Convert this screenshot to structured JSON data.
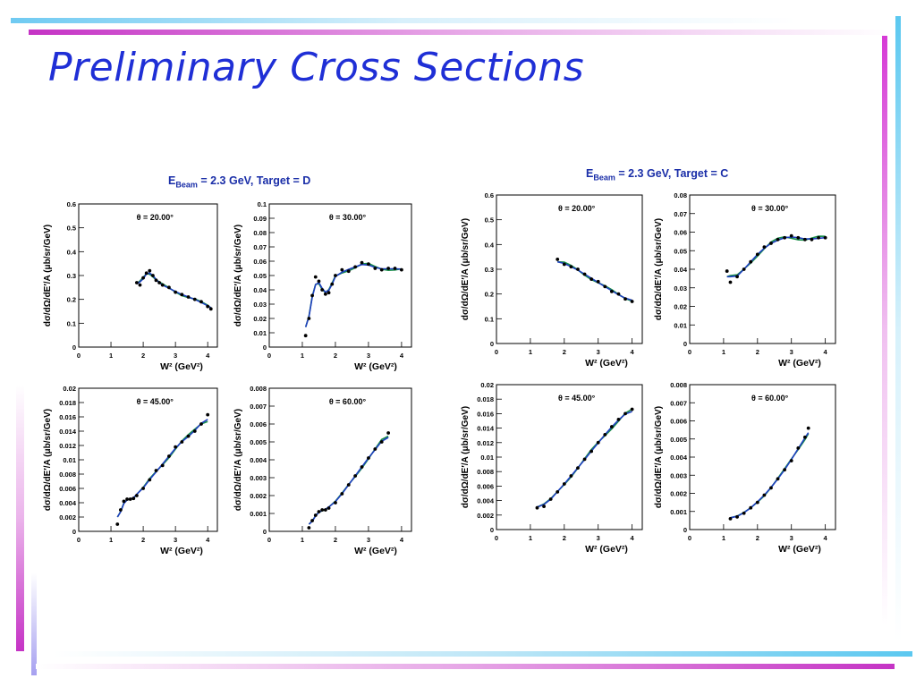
{
  "slide": {
    "title": "Preliminary Cross Sections",
    "colors": {
      "title": "#1f2fd6",
      "magenta": "#cc33cc",
      "cyan": "#5bc8f0",
      "group_title": "#1a2ea8"
    }
  },
  "groups": [
    {
      "prefix": "E",
      "sub": "Beam",
      "rest": "= 2.3 GeV, Target = D"
    },
    {
      "prefix": "E",
      "sub": "Beam",
      "rest": "= 2.3 GeV, Target = C"
    }
  ],
  "common": {
    "ylabel": "dσ/dΩ/dE′/A (μb/sr/GeV)",
    "xlabel": "W² (GeV²)",
    "series": [
      {
        "role": "data",
        "color": "#000000"
      },
      {
        "role": "model-1",
        "color": "#1e3fbf"
      },
      {
        "role": "model-2",
        "color": "#1a8f4a"
      }
    ]
  },
  "chart_data": [
    {
      "type": "scatter",
      "group": "Target = D",
      "annotation": "θ = 20.00°",
      "xlim": [
        0,
        4.3
      ],
      "ylim": [
        0,
        0.6
      ],
      "xticks": [
        "0",
        "1",
        "2",
        "3",
        "4"
      ],
      "yticks": [
        "0",
        "0.1",
        "0.2",
        "0.3",
        "0.4",
        "0.5",
        "0.6"
      ],
      "x": [
        1.8,
        1.9,
        2.0,
        2.1,
        2.2,
        2.3,
        2.4,
        2.5,
        2.6,
        2.8,
        3.0,
        3.2,
        3.4,
        3.6,
        3.8,
        4.0,
        4.1
      ],
      "y": [
        0.27,
        0.26,
        0.29,
        0.31,
        0.32,
        0.3,
        0.28,
        0.27,
        0.26,
        0.25,
        0.23,
        0.22,
        0.21,
        0.2,
        0.19,
        0.17,
        0.16
      ]
    },
    {
      "type": "scatter",
      "group": "Target = D",
      "annotation": "θ = 30.00°",
      "xlim": [
        0,
        4.3
      ],
      "ylim": [
        0,
        0.1
      ],
      "xticks": [
        "0",
        "1",
        "2",
        "3",
        "4"
      ],
      "yticks": [
        "0",
        "0.01",
        "0.02",
        "0.03",
        "0.04",
        "0.05",
        "0.06",
        "0.07",
        "0.08",
        "0.09",
        "0.1"
      ],
      "x": [
        1.1,
        1.2,
        1.3,
        1.4,
        1.5,
        1.6,
        1.7,
        1.8,
        1.9,
        2.0,
        2.2,
        2.4,
        2.6,
        2.8,
        3.0,
        3.2,
        3.4,
        3.6,
        3.8,
        4.0
      ],
      "y": [
        0.008,
        0.02,
        0.036,
        0.049,
        0.046,
        0.04,
        0.037,
        0.038,
        0.044,
        0.05,
        0.054,
        0.053,
        0.056,
        0.059,
        0.058,
        0.055,
        0.054,
        0.055,
        0.055,
        0.054
      ]
    },
    {
      "type": "scatter",
      "group": "Target = D",
      "annotation": "θ = 45.00°",
      "xlim": [
        0,
        4.3
      ],
      "ylim": [
        0,
        0.02
      ],
      "xticks": [
        "0",
        "1",
        "2",
        "3",
        "4"
      ],
      "yticks": [
        "0",
        "0.002",
        "0.004",
        "0.006",
        "0.008",
        "0.01",
        "0.012",
        "0.014",
        "0.016",
        "0.018",
        "0.02"
      ],
      "x": [
        1.2,
        1.3,
        1.4,
        1.5,
        1.6,
        1.7,
        1.8,
        2.0,
        2.2,
        2.4,
        2.6,
        2.8,
        3.0,
        3.2,
        3.4,
        3.6,
        3.8,
        4.0
      ],
      "y": [
        0.001,
        0.003,
        0.0042,
        0.0045,
        0.0045,
        0.0046,
        0.005,
        0.006,
        0.0072,
        0.0085,
        0.0092,
        0.0105,
        0.0118,
        0.0125,
        0.0133,
        0.014,
        0.015,
        0.0163
      ]
    },
    {
      "type": "scatter",
      "group": "Target = D",
      "annotation": "θ = 60.00°",
      "xlim": [
        0,
        4.3
      ],
      "ylim": [
        0,
        0.008
      ],
      "xticks": [
        "0",
        "1",
        "2",
        "3",
        "4"
      ],
      "yticks": [
        "0",
        "0.001",
        "0.002",
        "0.003",
        "0.004",
        "0.005",
        "0.006",
        "0.007",
        "0.008"
      ],
      "x": [
        1.2,
        1.3,
        1.4,
        1.5,
        1.6,
        1.7,
        1.8,
        2.0,
        2.2,
        2.4,
        2.6,
        2.8,
        3.0,
        3.2,
        3.4,
        3.6
      ],
      "y": [
        0.0002,
        0.0006,
        0.0009,
        0.0011,
        0.0012,
        0.0012,
        0.0013,
        0.0016,
        0.0021,
        0.0026,
        0.0031,
        0.0036,
        0.0041,
        0.0046,
        0.005,
        0.0055
      ]
    },
    {
      "type": "scatter",
      "group": "Target = C",
      "annotation": "θ = 20.00°",
      "xlim": [
        0,
        4.3
      ],
      "ylim": [
        0,
        0.6
      ],
      "xticks": [
        "0",
        "1",
        "2",
        "3",
        "4"
      ],
      "yticks": [
        "0",
        "0.1",
        "0.2",
        "0.3",
        "0.4",
        "0.5",
        "0.6"
      ],
      "x": [
        1.8,
        2.0,
        2.2,
        2.4,
        2.6,
        2.8,
        3.0,
        3.2,
        3.4,
        3.6,
        3.8,
        4.0
      ],
      "y": [
        0.34,
        0.32,
        0.31,
        0.3,
        0.28,
        0.26,
        0.25,
        0.23,
        0.21,
        0.2,
        0.18,
        0.17
      ]
    },
    {
      "type": "scatter",
      "group": "Target = C",
      "annotation": "θ = 30.00°",
      "xlim": [
        0,
        4.3
      ],
      "ylim": [
        0,
        0.08
      ],
      "xticks": [
        "0",
        "1",
        "2",
        "3",
        "4"
      ],
      "yticks": [
        "0",
        "0.01",
        "0.02",
        "0.03",
        "0.04",
        "0.05",
        "0.06",
        "0.07",
        "0.08"
      ],
      "x": [
        1.1,
        1.2,
        1.4,
        1.6,
        1.8,
        2.0,
        2.2,
        2.4,
        2.6,
        2.8,
        3.0,
        3.2,
        3.4,
        3.6,
        3.8,
        4.0
      ],
      "y": [
        0.039,
        0.033,
        0.036,
        0.04,
        0.044,
        0.048,
        0.052,
        0.054,
        0.056,
        0.057,
        0.058,
        0.057,
        0.056,
        0.056,
        0.057,
        0.057
      ]
    },
    {
      "type": "scatter",
      "group": "Target = C",
      "annotation": "θ = 45.00°",
      "xlim": [
        0,
        4.3
      ],
      "ylim": [
        0,
        0.02
      ],
      "xticks": [
        "0",
        "1",
        "2",
        "3",
        "4"
      ],
      "yticks": [
        "0",
        "0.002",
        "0.004",
        "0.006",
        "0.008",
        "0.01",
        "0.012",
        "0.014",
        "0.016",
        "0.018",
        "0.02"
      ],
      "x": [
        1.2,
        1.4,
        1.6,
        1.8,
        2.0,
        2.2,
        2.4,
        2.6,
        2.8,
        3.0,
        3.2,
        3.4,
        3.6,
        3.8,
        4.0
      ],
      "y": [
        0.003,
        0.0032,
        0.0042,
        0.0052,
        0.0063,
        0.0074,
        0.0085,
        0.0097,
        0.0108,
        0.012,
        0.0131,
        0.0142,
        0.0152,
        0.016,
        0.0166
      ]
    },
    {
      "type": "scatter",
      "group": "Target = C",
      "annotation": "θ = 60.00°",
      "xlim": [
        0,
        4.3
      ],
      "ylim": [
        0,
        0.008
      ],
      "xticks": [
        "0",
        "1",
        "2",
        "3",
        "4"
      ],
      "yticks": [
        "0",
        "0.001",
        "0.002",
        "0.003",
        "0.004",
        "0.005",
        "0.006",
        "0.007",
        "0.008"
      ],
      "x": [
        1.2,
        1.4,
        1.6,
        1.8,
        2.0,
        2.2,
        2.4,
        2.6,
        2.8,
        3.0,
        3.2,
        3.4,
        3.5
      ],
      "y": [
        0.0006,
        0.0007,
        0.0009,
        0.0012,
        0.0015,
        0.0019,
        0.0023,
        0.0028,
        0.0033,
        0.0038,
        0.0045,
        0.0051,
        0.0056
      ]
    }
  ]
}
